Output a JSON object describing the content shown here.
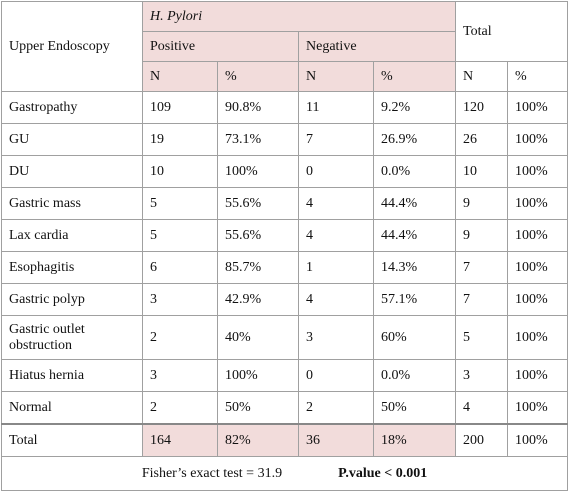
{
  "table": {
    "header": {
      "row_label": "Upper Endoscopy",
      "group": "H. Pylori",
      "total": "Total",
      "positive": "Positive",
      "negative": "Negative",
      "subheaders": [
        "N",
        "%",
        "N",
        "%",
        "N",
        "%"
      ]
    },
    "rows": [
      [
        "Gastropathy",
        "109",
        "90.8%",
        "11",
        "9.2%",
        "120",
        "100%"
      ],
      [
        "GU",
        "19",
        "73.1%",
        "7",
        "26.9%",
        "26",
        "100%"
      ],
      [
        "DU",
        "10",
        "100%",
        "0",
        "0.0%",
        "10",
        "100%"
      ],
      [
        "Gastric mass",
        "5",
        "55.6%",
        "4",
        "44.4%",
        "9",
        "100%"
      ],
      [
        "Lax cardia",
        "5",
        "55.6%",
        "4",
        "44.4%",
        "9",
        "100%"
      ],
      [
        "Esophagitis",
        "6",
        "85.7%",
        "1",
        "14.3%",
        "7",
        "100%"
      ],
      [
        "Gastric polyp",
        "3",
        "42.9%",
        "4",
        "57.1%",
        "7",
        "100%"
      ],
      [
        "Gastric outlet obstruction",
        "2",
        "40%",
        "3",
        "60%",
        "5",
        "100%"
      ],
      [
        "Hiatus hernia",
        "3",
        "100%",
        "0",
        "0.0%",
        "3",
        "100%"
      ],
      [
        "Normal",
        "2",
        "50%",
        "2",
        "50%",
        "4",
        "100%"
      ]
    ],
    "total_row": [
      "Total",
      "164",
      "82%",
      "36",
      "18%",
      "200",
      "100%"
    ]
  },
  "footer": {
    "test": "Fisher’s exact test = 31.9",
    "p_value": "P.value < 0.001"
  }
}
